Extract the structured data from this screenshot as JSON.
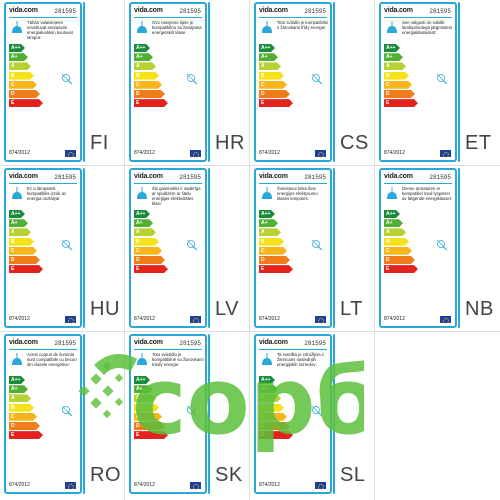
{
  "brand": "vida",
  "brand_suffix": ".com",
  "product_code": "281595",
  "regulation": "874/2012",
  "classes": [
    "A++",
    "A+",
    "A",
    "B",
    "C",
    "D",
    "E"
  ],
  "class_colors": [
    "#1a8a3b",
    "#51b033",
    "#b7d133",
    "#f6e21a",
    "#f7b51a",
    "#ef7d1c",
    "#e3221d"
  ],
  "accent_color": "#2aa9d8",
  "watermark_text": "сорбе",
  "watermark_color": "#5cc03b",
  "labels": [
    {
      "lang": "FI",
      "desc": "Tähän valaisimeen soveltuvat seuraaviin energialuokkiin kuuluvat lamput:"
    },
    {
      "lang": "HR",
      "desc": "Ovo rasvjetno tijelo je kompatibilno sa žaruljama energetskih klase:"
    },
    {
      "lang": "CS",
      "desc": "Toto svítidlo je kompatibilní s žárovkami třídy energie:"
    },
    {
      "lang": "ET",
      "desc": "See valgusti on sobilik lambipirnidega järgmistest energiaklassidest:"
    },
    {
      "lang": "HU",
      "desc": "Ez a lámpatest kompatibilis izzók az energia osztályai:"
    },
    {
      "lang": "LV",
      "desc": "Šis gaismeklis ir saderīgs ar spuldzēm ar šādu enerģijas efektivitātes klasi:"
    },
    {
      "lang": "LT",
      "desc": "Šviestuvui tinka šios energijos efektyvumo klasės lemputės:"
    },
    {
      "lang": "NB",
      "desc": "Denne armaturen er kompatibel med lyspærer av følgende energiklasser:"
    },
    {
      "lang": "RO",
      "desc": "Acest corpuri de iluminat sunt compatibile cu becuri din clasele energetice:"
    },
    {
      "lang": "SK",
      "desc": "Toto svietidlo je kompatibilné so žiarovkami triedy energie:"
    },
    {
      "lang": "SL",
      "desc": "Ta svetilka je združljiva z žarnicami naslednjih energijskih razredov:"
    }
  ]
}
